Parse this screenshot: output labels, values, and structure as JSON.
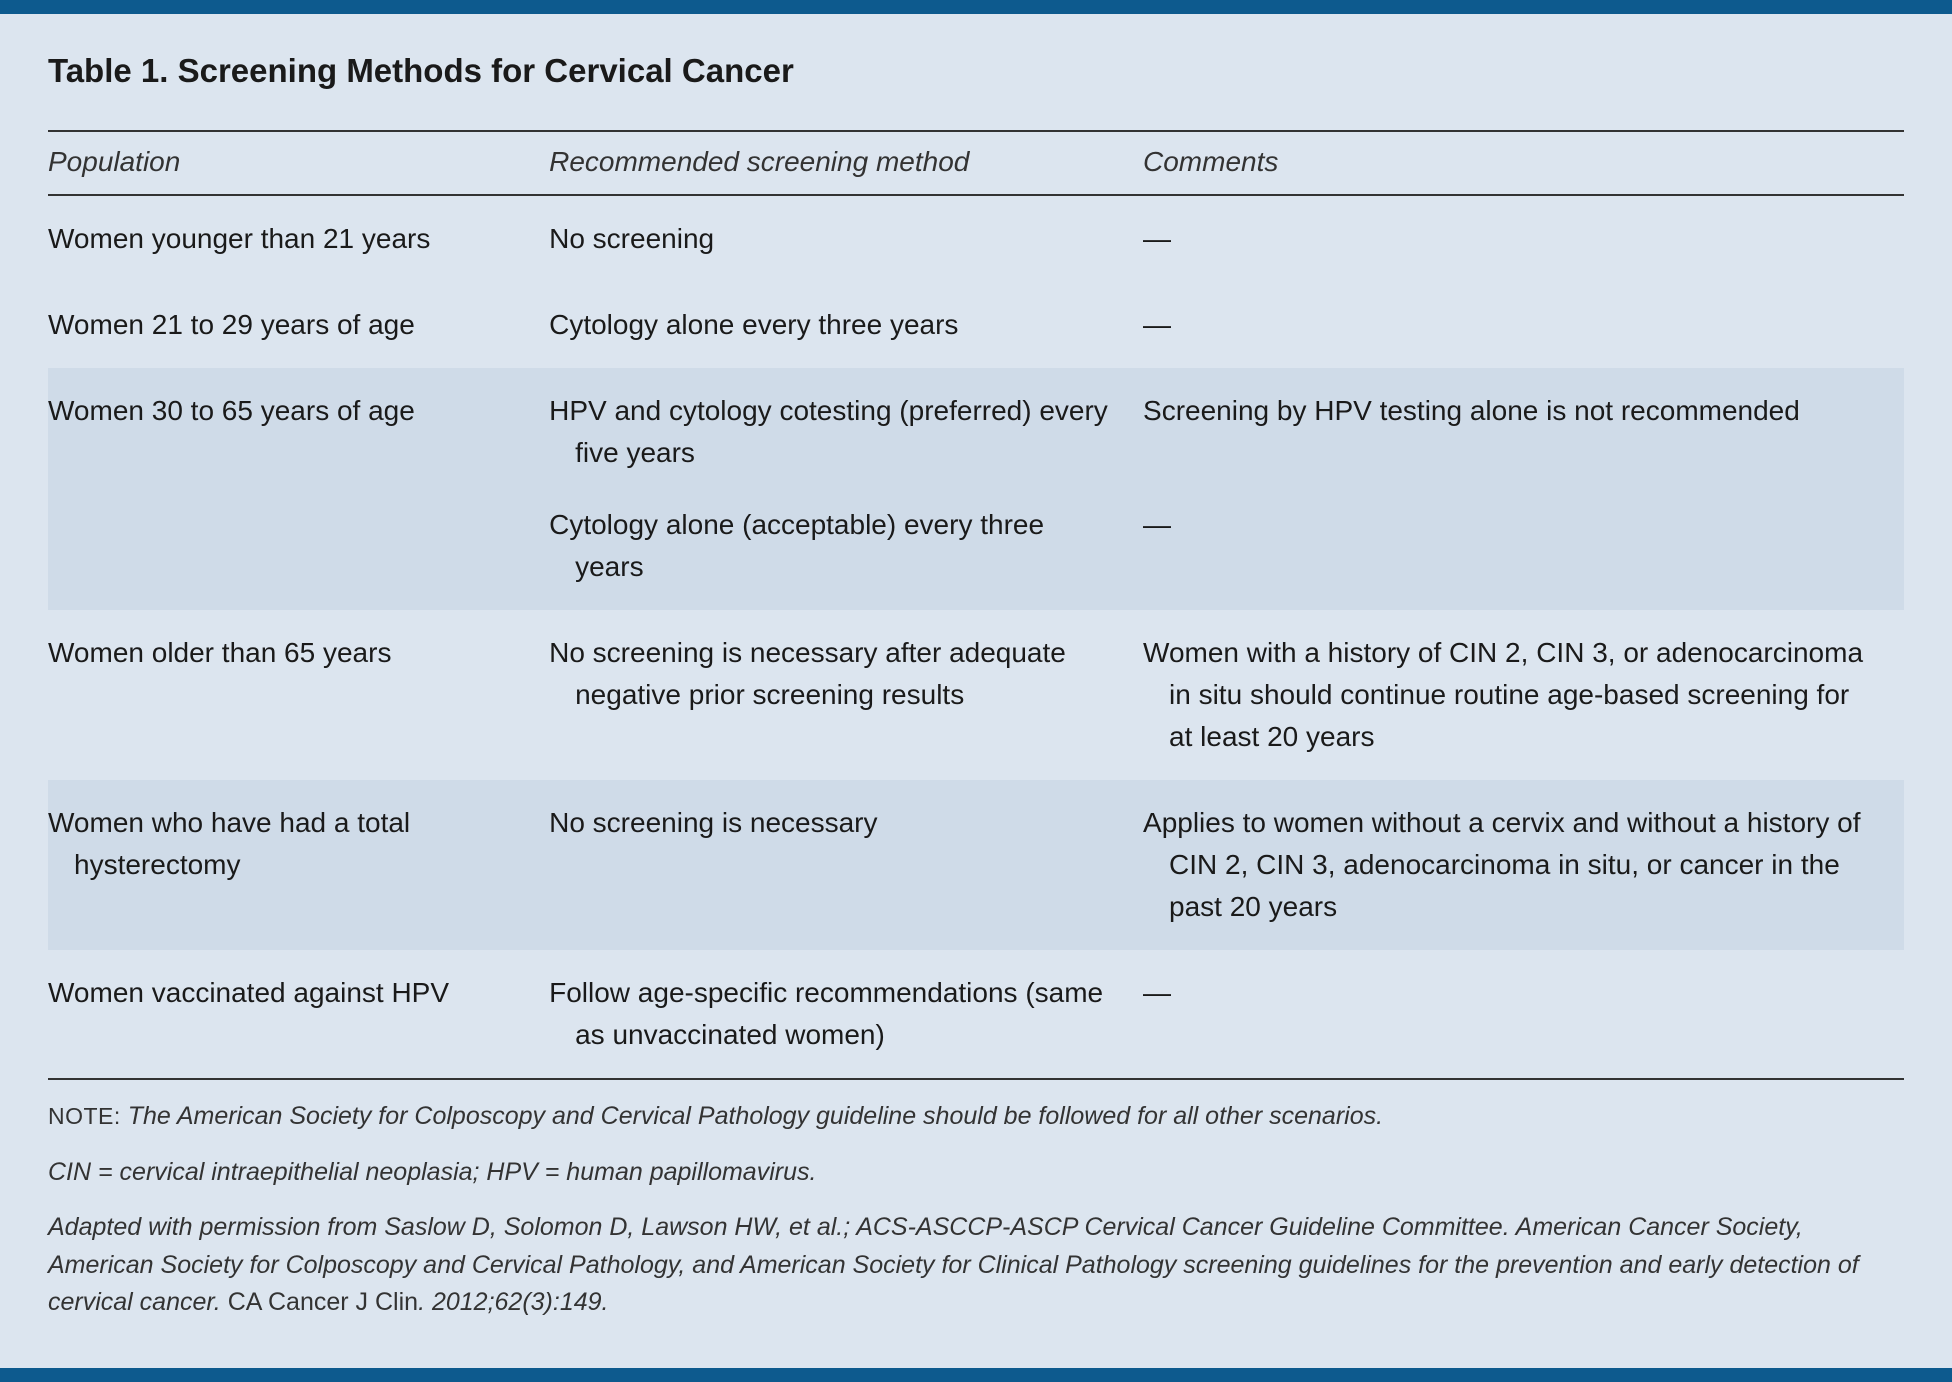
{
  "table": {
    "title": "Table 1. Screening Methods for Cervical Cancer",
    "columns": [
      "Population",
      "Recommended screening method",
      "Comments"
    ],
    "rows": [
      {
        "population": "Women younger than 21 years",
        "method": "No screening",
        "comments": "—",
        "alt": false
      },
      {
        "population": "Women 21 to 29 years of age",
        "method": "Cytology alone every three years",
        "comments": "—",
        "alt": false
      },
      {
        "population": "Women 30 to 65 years of age",
        "method": "HPV and cytology cotesting (preferred) every five years",
        "comments": "Screening by HPV testing alone is not recommended",
        "alt": true
      },
      {
        "population": "",
        "method": "Cytology alone (acceptable) every three years",
        "comments": "—",
        "alt": true,
        "sub": true
      },
      {
        "population": "Women older than 65 years",
        "method": "No screening is necessary after adequate negative prior screening results",
        "comments": "Women with a history of CIN 2, CIN 3, or adenocarcinoma in situ should continue routine age-based screening for at least 20 years",
        "alt": false
      },
      {
        "population": "Women who have had a total hysterectomy",
        "method": "No screening is necessary",
        "comments": "Applies to women without a cervix and without a history of CIN 2, CIN 3, adenocarcinoma in situ, or cancer in the past 20 years",
        "alt": true
      },
      {
        "population": "Women vaccinated against HPV",
        "method": "Follow age-specific recommendations (same as unvaccinated women)",
        "comments": "—",
        "alt": false
      }
    ],
    "footer": {
      "note_label": "NOTE:",
      "note_text": "The American Society for Colposcopy and Cervical Pathology guideline should be followed for all other scenarios.",
      "abbrev": "CIN = cervical intraepithelial neoplasia; HPV = human papillomavirus.",
      "citation_italic": "Adapted with permission from Saslow D, Solomon D, Lawson HW, et al.; ACS-ASCCP-ASCP Cervical Cancer Guideline Committee. American Cancer Society, American Society for Colposcopy and Cervical Pathology, and American Society for Clinical Pathology screening guidelines for the prevention and early detection of cervical cancer.",
      "citation_journal": "CA Cancer J Clin",
      "citation_ref": ". 2012;62(3):149."
    }
  },
  "style": {
    "border_color": "#0d5a8e",
    "background_color": "#dce5ef",
    "alt_row_color": "#cfdbe8",
    "text_color": "#1a1a1a",
    "title_fontsize": 33,
    "body_fontsize": 28,
    "footer_fontsize": 25
  }
}
